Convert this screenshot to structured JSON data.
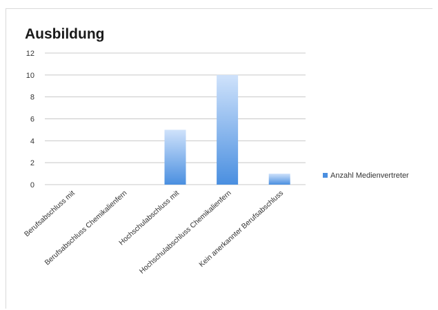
{
  "chart_data": {
    "type": "bar",
    "title": "Ausbildung",
    "xlabel": "",
    "ylabel": "",
    "ylim": [
      0,
      12
    ],
    "yticks": [
      0,
      2,
      4,
      6,
      8,
      10,
      12
    ],
    "grid": true,
    "legend_position": "right",
    "categories": [
      "Berufsabschluss mit",
      "Berufsabschluss Chemikalienfern",
      "Hochschulabschluss mit",
      "Hochschulabschluss Chemikalienfern",
      "Kein anerkannter Berufsabschluss"
    ],
    "series": [
      {
        "name": "Anzahl Medienvertreter",
        "values": [
          0,
          0,
          5,
          10,
          1
        ],
        "color_top": "#cfe2fb",
        "color_bottom": "#4a8fe0"
      }
    ]
  }
}
